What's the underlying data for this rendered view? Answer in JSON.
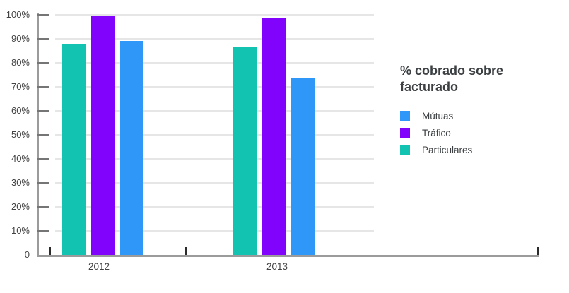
{
  "chart_data": {
    "type": "bar",
    "title": "% cobrado sobre facturado",
    "categories": [
      "2012",
      "2013"
    ],
    "series": [
      {
        "name": "Particulares",
        "color": "#12c3b2",
        "values": [
          87.5,
          86.5
        ]
      },
      {
        "name": "Tráfico",
        "color": "#8103fc",
        "values": [
          99.6,
          98.5
        ]
      },
      {
        "name": "Mútuas",
        "color": "#2e97f7",
        "values": [
          89.0,
          73.5
        ]
      }
    ],
    "xlabel": "",
    "ylabel": "",
    "ylim": [
      0,
      100
    ],
    "y_axis": {
      "min": 0,
      "max": 100,
      "unit": "%",
      "ticks": [
        {
          "value": 100,
          "label": "100%"
        },
        {
          "value": 90,
          "label": "90%"
        },
        {
          "value": 80,
          "label": "80%"
        },
        {
          "value": 70,
          "label": "70%"
        },
        {
          "value": 60,
          "label": "60%"
        },
        {
          "value": 50,
          "label": "50%"
        },
        {
          "value": 40,
          "label": "40%"
        },
        {
          "value": 30,
          "label": "30%"
        },
        {
          "value": 20,
          "label": "20%"
        },
        {
          "value": 10,
          "label": "10%"
        },
        {
          "value": 0,
          "label": "0"
        }
      ]
    },
    "grid": true,
    "legend_position": "right"
  },
  "legend": {
    "title": "% cobrado sobre facturado",
    "items": [
      {
        "label": "Mútuas",
        "color": "#2e97f7"
      },
      {
        "label": "Tráfico",
        "color": "#8103fc"
      },
      {
        "label": "Particulares",
        "color": "#12c3b2"
      }
    ]
  },
  "colors": {
    "gridline": "#e6e6e6",
    "axis_line": "#9b9b9b",
    "y_tick": "#757575",
    "x_tick": "#2b2b2b",
    "axis_text": "#424242",
    "title_text": "#3c4043",
    "background": "#ffffff"
  }
}
